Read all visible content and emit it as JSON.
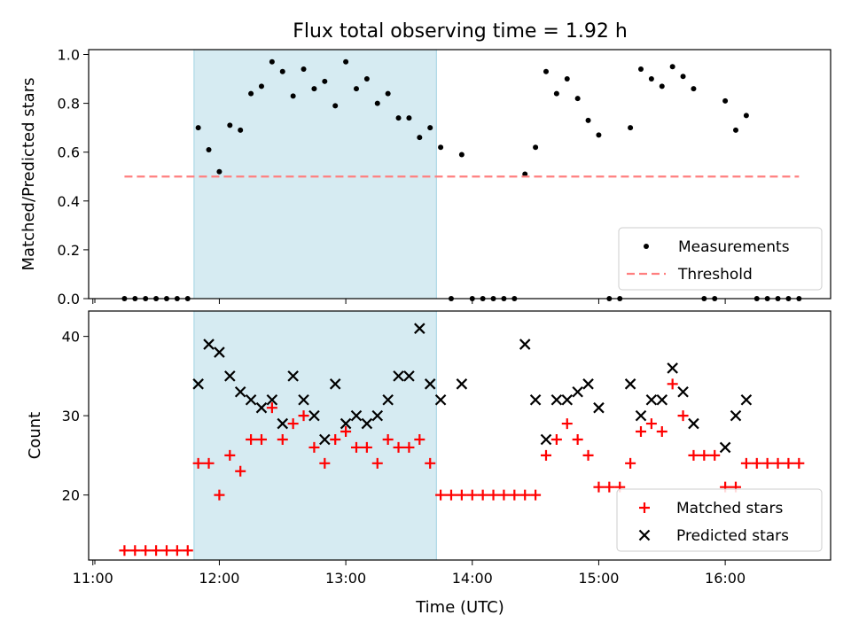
{
  "chart_data": {
    "title": "Flux total observing time = 1.92 h",
    "xlabel": "Time (UTC)",
    "x_ticks": [
      "11:00",
      "12:00",
      "13:00",
      "14:00",
      "15:00",
      "16:00"
    ],
    "xlim": [
      "10:58",
      "16:50"
    ],
    "shaded_interval": {
      "start": "11:48",
      "end": "13:43",
      "color": "#add8e6"
    },
    "panels": [
      {
        "type": "scatter",
        "ylabel": "Matched/Predicted stars",
        "ylim": [
          0,
          1.02
        ],
        "y_ticks": [
          "0.0",
          "0.2",
          "0.4",
          "0.6",
          "0.8",
          "1.0"
        ],
        "legend_position": "lower right",
        "series": [
          {
            "name": "Measurements",
            "marker": "dot",
            "color": "#000000",
            "points": [
              [
                "11:15",
                0
              ],
              [
                "11:20",
                0
              ],
              [
                "11:25",
                0
              ],
              [
                "11:30",
                0
              ],
              [
                "11:35",
                0
              ],
              [
                "11:40",
                0
              ],
              [
                "11:45",
                0
              ],
              [
                "11:50",
                0.7
              ],
              [
                "11:55",
                0.61
              ],
              [
                "12:00",
                0.52
              ],
              [
                "12:05",
                0.71
              ],
              [
                "12:10",
                0.69
              ],
              [
                "12:15",
                0.84
              ],
              [
                "12:20",
                0.87
              ],
              [
                "12:25",
                0.97
              ],
              [
                "12:30",
                0.93
              ],
              [
                "12:35",
                0.83
              ],
              [
                "12:40",
                0.94
              ],
              [
                "12:45",
                0.86
              ],
              [
                "12:50",
                0.89
              ],
              [
                "12:55",
                0.79
              ],
              [
                "13:00",
                0.97
              ],
              [
                "13:05",
                0.86
              ],
              [
                "13:10",
                0.9
              ],
              [
                "13:15",
                0.8
              ],
              [
                "13:20",
                0.84
              ],
              [
                "13:25",
                0.74
              ],
              [
                "13:30",
                0.74
              ],
              [
                "13:35",
                0.66
              ],
              [
                "13:40",
                0.7
              ],
              [
                "13:45",
                0.62
              ],
              [
                "13:50",
                0
              ],
              [
                "13:55",
                0.59
              ],
              [
                "14:00",
                0
              ],
              [
                "14:05",
                0
              ],
              [
                "14:10",
                0
              ],
              [
                "14:15",
                0
              ],
              [
                "14:20",
                0
              ],
              [
                "14:25",
                0.51
              ],
              [
                "14:30",
                0.62
              ],
              [
                "14:35",
                0.93
              ],
              [
                "14:40",
                0.84
              ],
              [
                "14:45",
                0.9
              ],
              [
                "14:50",
                0.82
              ],
              [
                "14:55",
                0.73
              ],
              [
                "15:00",
                0.67
              ],
              [
                "15:05",
                0
              ],
              [
                "15:10",
                0
              ],
              [
                "15:15",
                0.7
              ],
              [
                "15:20",
                0.94
              ],
              [
                "15:25",
                0.9
              ],
              [
                "15:30",
                0.87
              ],
              [
                "15:35",
                0.95
              ],
              [
                "15:40",
                0.91
              ],
              [
                "15:45",
                0.86
              ],
              [
                "15:50",
                0
              ],
              [
                "15:55",
                0
              ],
              [
                "16:00",
                0.81
              ],
              [
                "16:05",
                0.69
              ],
              [
                "16:10",
                0.75
              ],
              [
                "16:15",
                0
              ],
              [
                "16:20",
                0
              ],
              [
                "16:25",
                0
              ],
              [
                "16:30",
                0
              ],
              [
                "16:35",
                0
              ]
            ]
          },
          {
            "name": "Threshold",
            "marker": "dashed-line",
            "color": "#ff7f7f",
            "points": [
              [
                "11:15",
                0.5
              ],
              [
                "16:35",
                0.5
              ]
            ]
          }
        ]
      },
      {
        "type": "scatter",
        "ylabel": "Count",
        "ylim": [
          11.8,
          43.2
        ],
        "y_ticks": [
          "20",
          "30",
          "40"
        ],
        "legend_position": "lower right",
        "series": [
          {
            "name": "Matched stars",
            "marker": "plus",
            "color": "#ff0000",
            "points": [
              [
                "11:15",
                13
              ],
              [
                "11:20",
                13
              ],
              [
                "11:25",
                13
              ],
              [
                "11:30",
                13
              ],
              [
                "11:35",
                13
              ],
              [
                "11:40",
                13
              ],
              [
                "11:45",
                13
              ],
              [
                "11:50",
                24
              ],
              [
                "11:55",
                24
              ],
              [
                "12:00",
                20
              ],
              [
                "12:05",
                25
              ],
              [
                "12:10",
                23
              ],
              [
                "12:15",
                27
              ],
              [
                "12:20",
                27
              ],
              [
                "12:25",
                31
              ],
              [
                "12:30",
                27
              ],
              [
                "12:35",
                29
              ],
              [
                "12:40",
                30
              ],
              [
                "12:45",
                26
              ],
              [
                "12:50",
                24
              ],
              [
                "12:55",
                27
              ],
              [
                "13:00",
                28
              ],
              [
                "13:05",
                26
              ],
              [
                "13:10",
                26
              ],
              [
                "13:15",
                24
              ],
              [
                "13:20",
                27
              ],
              [
                "13:25",
                26
              ],
              [
                "13:30",
                26
              ],
              [
                "13:35",
                27
              ],
              [
                "13:40",
                24
              ],
              [
                "13:45",
                20
              ],
              [
                "13:50",
                20
              ],
              [
                "13:55",
                20
              ],
              [
                "14:00",
                20
              ],
              [
                "14:05",
                20
              ],
              [
                "14:10",
                20
              ],
              [
                "14:15",
                20
              ],
              [
                "14:20",
                20
              ],
              [
                "14:25",
                20
              ],
              [
                "14:30",
                20
              ],
              [
                "14:35",
                25
              ],
              [
                "14:40",
                27
              ],
              [
                "14:45",
                29
              ],
              [
                "14:50",
                27
              ],
              [
                "14:55",
                25
              ],
              [
                "15:00",
                21
              ],
              [
                "15:05",
                21
              ],
              [
                "15:10",
                21
              ],
              [
                "15:15",
                24
              ],
              [
                "15:20",
                28
              ],
              [
                "15:25",
                29
              ],
              [
                "15:30",
                28
              ],
              [
                "15:35",
                34
              ],
              [
                "15:40",
                30
              ],
              [
                "15:45",
                25
              ],
              [
                "15:50",
                25
              ],
              [
                "15:55",
                25
              ],
              [
                "16:00",
                21
              ],
              [
                "16:05",
                21
              ],
              [
                "16:10",
                24
              ],
              [
                "16:15",
                24
              ],
              [
                "16:20",
                24
              ],
              [
                "16:25",
                24
              ],
              [
                "16:30",
                24
              ],
              [
                "16:35",
                24
              ]
            ]
          },
          {
            "name": "Predicted stars",
            "marker": "x",
            "color": "#000000",
            "points": [
              [
                "11:50",
                34
              ],
              [
                "11:55",
                39
              ],
              [
                "12:00",
                38
              ],
              [
                "12:05",
                35
              ],
              [
                "12:10",
                33
              ],
              [
                "12:15",
                32
              ],
              [
                "12:20",
                31
              ],
              [
                "12:25",
                32
              ],
              [
                "12:30",
                29
              ],
              [
                "12:35",
                35
              ],
              [
                "12:40",
                32
              ],
              [
                "12:45",
                30
              ],
              [
                "12:50",
                27
              ],
              [
                "12:55",
                34
              ],
              [
                "13:00",
                29
              ],
              [
                "13:05",
                30
              ],
              [
                "13:10",
                29
              ],
              [
                "13:15",
                30
              ],
              [
                "13:20",
                32
              ],
              [
                "13:25",
                35
              ],
              [
                "13:30",
                35
              ],
              [
                "13:35",
                41
              ],
              [
                "13:40",
                34
              ],
              [
                "13:45",
                32
              ],
              [
                "13:55",
                34
              ],
              [
                "14:25",
                39
              ],
              [
                "14:30",
                32
              ],
              [
                "14:35",
                27
              ],
              [
                "14:40",
                32
              ],
              [
                "14:45",
                32
              ],
              [
                "14:50",
                33
              ],
              [
                "14:55",
                34
              ],
              [
                "15:00",
                31
              ],
              [
                "15:15",
                34
              ],
              [
                "15:20",
                30
              ],
              [
                "15:25",
                32
              ],
              [
                "15:30",
                32
              ],
              [
                "15:35",
                36
              ],
              [
                "15:40",
                33
              ],
              [
                "15:45",
                29
              ],
              [
                "16:00",
                26
              ],
              [
                "16:05",
                30
              ],
              [
                "16:10",
                32
              ]
            ]
          }
        ]
      }
    ]
  }
}
